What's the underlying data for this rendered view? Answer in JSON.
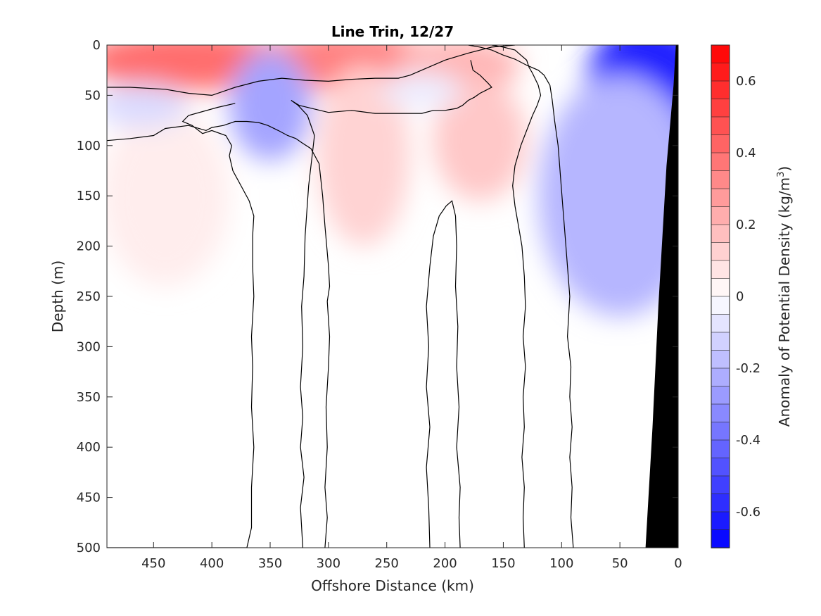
{
  "chart_data": {
    "type": "heatmap",
    "title": "Line Trin, 12/27",
    "xlabel": "Offshore Distance (km)",
    "ylabel": "Depth (m)",
    "colorbar_label": "Anomaly of Potential Density (kg/m",
    "colorbar_label_sup": "3",
    "colorbar_label_close": ")",
    "xlim": [
      490,
      0
    ],
    "ylim": [
      500,
      0
    ],
    "x_reversed": true,
    "y_reversed": true,
    "x_ticks": [
      450,
      400,
      350,
      300,
      250,
      200,
      150,
      100,
      50,
      0
    ],
    "y_ticks": [
      0,
      50,
      100,
      150,
      200,
      250,
      300,
      350,
      400,
      450,
      500
    ],
    "clim": [
      -0.7,
      0.7
    ],
    "cbar_ticks": [
      0.6,
      0.4,
      0.2,
      0,
      -0.2,
      -0.4,
      -0.6
    ],
    "cbar_tick_labels": [
      "0.6",
      "0.4",
      "0.2",
      "0",
      "-0.2",
      "-0.4",
      "-0.6"
    ],
    "cbar_levels": 28,
    "colormap": {
      "positive": "#ff0000",
      "zero": "#ffffff",
      "negative": "#0000ff"
    },
    "contour_color": "#000000",
    "bottom_fill_color": "#000000",
    "anomaly_features": [
      {
        "sign": "positive",
        "x": 420,
        "depth": 15,
        "value": 0.4
      },
      {
        "sign": "positive",
        "x": 285,
        "depth": 15,
        "value": 0.35
      },
      {
        "sign": "positive",
        "x": 190,
        "depth": 20,
        "value": 0.2
      },
      {
        "sign": "positive",
        "x": 170,
        "depth": 95,
        "value": 0.15
      },
      {
        "sign": "positive",
        "x": 270,
        "depth": 110,
        "value": 0.12
      },
      {
        "sign": "positive",
        "x": 440,
        "depth": 150,
        "value": 0.05
      },
      {
        "sign": "negative",
        "x": 350,
        "depth": 60,
        "value": -0.25
      },
      {
        "sign": "negative",
        "x": 460,
        "depth": 60,
        "value": -0.1
      },
      {
        "sign": "negative",
        "x": 220,
        "depth": 45,
        "value": -0.05
      },
      {
        "sign": "negative",
        "x": 25,
        "depth": 45,
        "value": -0.6
      },
      {
        "sign": "negative",
        "x": 50,
        "depth": 150,
        "value": -0.2
      }
    ],
    "zero_contours": [
      {
        "closed": false,
        "points": [
          [
            490,
            42
          ],
          [
            470,
            42
          ],
          [
            440,
            44
          ],
          [
            420,
            48
          ],
          [
            400,
            50
          ],
          [
            380,
            42
          ],
          [
            360,
            36
          ],
          [
            340,
            33
          ],
          [
            320,
            35
          ],
          [
            300,
            36
          ],
          [
            280,
            34
          ],
          [
            260,
            33
          ],
          [
            240,
            33
          ],
          [
            230,
            30
          ],
          [
            220,
            25
          ],
          [
            200,
            15
          ],
          [
            180,
            8
          ],
          [
            160,
            2
          ],
          [
            140,
            0
          ]
        ]
      },
      {
        "closed": false,
        "points": [
          [
            490,
            95
          ],
          [
            470,
            93
          ],
          [
            450,
            90
          ],
          [
            440,
            83
          ],
          [
            420,
            80
          ],
          [
            405,
            85
          ],
          [
            400,
            82
          ],
          [
            390,
            80
          ],
          [
            380,
            76
          ],
          [
            370,
            76
          ],
          [
            360,
            77
          ],
          [
            352,
            80
          ],
          [
            343,
            85
          ],
          [
            335,
            90
          ],
          [
            328,
            93
          ],
          [
            323,
            97
          ],
          [
            315,
            103
          ],
          [
            308,
            118
          ],
          [
            305,
            150
          ],
          [
            303,
            180
          ],
          [
            300,
            220
          ],
          [
            299,
            240
          ],
          [
            301,
            255
          ],
          [
            299,
            290
          ],
          [
            300,
            320
          ],
          [
            302,
            360
          ],
          [
            301,
            400
          ],
          [
            303,
            440
          ],
          [
            301,
            470
          ],
          [
            303,
            500
          ]
        ]
      },
      {
        "closed": false,
        "points": [
          [
            490,
            500
          ],
          [
            486,
            500
          ],
          [
            460,
            500
          ],
          [
            440,
            500
          ],
          [
            420,
            500
          ],
          [
            400,
            500
          ],
          [
            385,
            500
          ],
          [
            378,
            500
          ],
          [
            370,
            500
          ],
          [
            366,
            480
          ],
          [
            366,
            440
          ],
          [
            364,
            400
          ],
          [
            366,
            360
          ],
          [
            365,
            320
          ],
          [
            366,
            290
          ],
          [
            364,
            250
          ],
          [
            365,
            220
          ],
          [
            365,
            190
          ],
          [
            364,
            170
          ],
          [
            368,
            155
          ],
          [
            375,
            140
          ],
          [
            382,
            125
          ],
          [
            385,
            110
          ],
          [
            383,
            100
          ],
          [
            388,
            90
          ],
          [
            400,
            85
          ],
          [
            408,
            88
          ],
          [
            417,
            80
          ],
          [
            425,
            76
          ],
          [
            420,
            70
          ],
          [
            395,
            62
          ],
          [
            380,
            58
          ]
        ]
      },
      {
        "closed": false,
        "points": [
          [
            322,
            500
          ],
          [
            324,
            460
          ],
          [
            321,
            430
          ],
          [
            324,
            400
          ],
          [
            322,
            370
          ],
          [
            324,
            340
          ],
          [
            322,
            300
          ],
          [
            323,
            260
          ],
          [
            321,
            230
          ],
          [
            320,
            190
          ],
          [
            317,
            140
          ],
          [
            314,
            110
          ],
          [
            312,
            90
          ],
          [
            318,
            70
          ],
          [
            326,
            60
          ],
          [
            332,
            55
          ],
          [
            325,
            60
          ],
          [
            300,
            67
          ],
          [
            280,
            65
          ],
          [
            260,
            68
          ],
          [
            240,
            68
          ],
          [
            220,
            68
          ],
          [
            210,
            65
          ],
          [
            200,
            65
          ],
          [
            190,
            63
          ],
          [
            185,
            60
          ],
          [
            180,
            55
          ],
          [
            175,
            52
          ],
          [
            170,
            48
          ],
          [
            165,
            45
          ],
          [
            160,
            42
          ],
          [
            163,
            38
          ],
          [
            170,
            30
          ],
          [
            176,
            25
          ],
          [
            178,
            15
          ]
        ]
      },
      {
        "closed": false,
        "points": [
          [
            160,
            0
          ],
          [
            150,
            2
          ],
          [
            140,
            5
          ],
          [
            135,
            10
          ],
          [
            130,
            15
          ],
          [
            128,
            22
          ],
          [
            125,
            28
          ],
          [
            120,
            40
          ],
          [
            118,
            50
          ],
          [
            121,
            60
          ],
          [
            125,
            70
          ],
          [
            130,
            85
          ],
          [
            135,
            100
          ],
          [
            140,
            120
          ],
          [
            142,
            140
          ],
          [
            140,
            160
          ],
          [
            137,
            180
          ],
          [
            134,
            200
          ],
          [
            132,
            230
          ],
          [
            131,
            260
          ],
          [
            133,
            290
          ],
          [
            131,
            320
          ],
          [
            133,
            350
          ],
          [
            132,
            380
          ],
          [
            134,
            410
          ],
          [
            132,
            440
          ],
          [
            133,
            470
          ],
          [
            132,
            500
          ]
        ]
      },
      {
        "closed": false,
        "points": [
          [
            187,
            500
          ],
          [
            188,
            470
          ],
          [
            187,
            440
          ],
          [
            190,
            400
          ],
          [
            188,
            360
          ],
          [
            190,
            320
          ],
          [
            189,
            280
          ],
          [
            191,
            240
          ],
          [
            190,
            200
          ],
          [
            191,
            170
          ],
          [
            194,
            155
          ],
          [
            199,
            160
          ],
          [
            205,
            170
          ],
          [
            210,
            190
          ],
          [
            213,
            220
          ],
          [
            216,
            260
          ],
          [
            214,
            300
          ],
          [
            216,
            340
          ],
          [
            213,
            380
          ],
          [
            216,
            420
          ],
          [
            214,
            460
          ],
          [
            213,
            500
          ]
        ]
      },
      {
        "closed": false,
        "points": [
          [
            90,
            500
          ],
          [
            92,
            470
          ],
          [
            91,
            440
          ],
          [
            93,
            410
          ],
          [
            91,
            380
          ],
          [
            93,
            350
          ],
          [
            92,
            320
          ],
          [
            95,
            290
          ],
          [
            93,
            250
          ],
          [
            95,
            220
          ],
          [
            97,
            190
          ],
          [
            99,
            160
          ],
          [
            101,
            130
          ],
          [
            103,
            100
          ],
          [
            106,
            75
          ],
          [
            108,
            55
          ],
          [
            110,
            40
          ],
          [
            115,
            30
          ],
          [
            120,
            25
          ],
          [
            130,
            20
          ],
          [
            140,
            14
          ],
          [
            150,
            10
          ],
          [
            160,
            5
          ],
          [
            170,
            2
          ],
          [
            180,
            0
          ]
        ]
      }
    ],
    "bottom_polygon_depth_points": [
      [
        2,
        0
      ],
      [
        0,
        0
      ],
      [
        0,
        500
      ],
      [
        28,
        500
      ],
      [
        22,
        380
      ],
      [
        17,
        260
      ],
      [
        10,
        120
      ],
      [
        4,
        40
      ]
    ]
  }
}
